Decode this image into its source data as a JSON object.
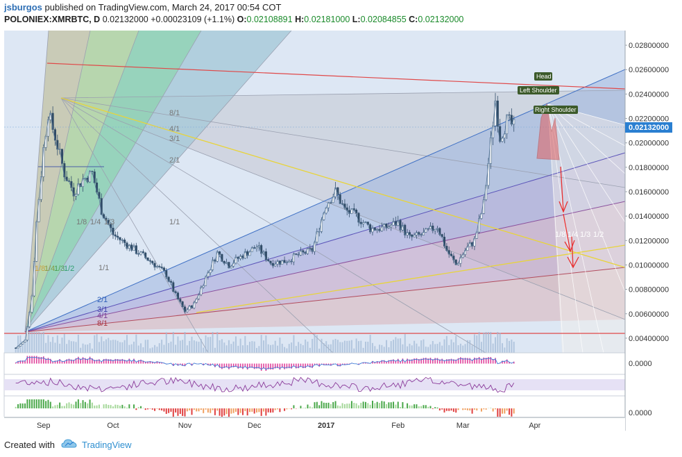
{
  "header": {
    "author": "jsburgos",
    "published": "published on TradingView.com, March 24, 2017 00:54 COT",
    "symbol": "POLONIEX:XMRBTC, D",
    "last": "0.02132000",
    "change": "+0.00023109 (+1.1%)",
    "open_label": "O:",
    "open": "0.02108891",
    "high_label": "H:",
    "high": "0.02181000",
    "low_label": "L:",
    "low": "0.02084855",
    "close_label": "C:",
    "close": "0.02132000"
  },
  "footer": {
    "created_with": "Created with",
    "brand": "TradingView",
    "logo_icon": "tradingview-cloud-icon"
  },
  "colors": {
    "up": "#26a69a",
    "down": "#ef5350",
    "price_badge": "#2a7fd1",
    "resistance": "#e04848",
    "trendline": "#e8d43a",
    "background": "#dfe8f5"
  },
  "annotations": {
    "head": "Head",
    "left_shoulder": "Left Shoulder",
    "right_shoulder": "Right Shoulder",
    "fan_labels": [
      "8/1",
      "4/1",
      "3/1",
      "2/1",
      "1/1",
      "1/8",
      "1/4",
      "1/3",
      "1/1",
      "2/1",
      "3/1",
      "4/1",
      "8/1"
    ],
    "green_fan_labels": [
      "1/8",
      "1/4",
      "1/3",
      "1/2"
    ],
    "projection_labels": [
      "1/8",
      "1/4",
      "1/3",
      "1/2"
    ]
  },
  "chart_data": {
    "type": "candlestick",
    "title": "POLONIEX:XMRBTC, D",
    "x_ticks": [
      "Sep",
      "Oct",
      "Nov",
      "Dec",
      "2017",
      "Feb",
      "Mar",
      "Apr"
    ],
    "y_ticks": [
      "0.00400000",
      "0.00600000",
      "0.00800000",
      "0.01000000",
      "0.01200000",
      "0.01400000",
      "0.01600000",
      "0.01800000",
      "0.02000000",
      "0.02200000",
      "0.02400000",
      "0.02600000",
      "0.02800000"
    ],
    "ylim": [
      0.0028,
      0.0292
    ],
    "last_price": "0.02132000",
    "close_series": [
      {
        "date": "2016-08-20",
        "value": 0.0032
      },
      {
        "date": "2016-08-24",
        "value": 0.0038
      },
      {
        "date": "2016-08-27",
        "value": 0.0075
      },
      {
        "date": "2016-08-29",
        "value": 0.0135
      },
      {
        "date": "2016-09-01",
        "value": 0.0195
      },
      {
        "date": "2016-09-03",
        "value": 0.0225
      },
      {
        "date": "2016-09-06",
        "value": 0.0205
      },
      {
        "date": "2016-09-10",
        "value": 0.0175
      },
      {
        "date": "2016-09-14",
        "value": 0.016
      },
      {
        "date": "2016-09-18",
        "value": 0.017
      },
      {
        "date": "2016-09-22",
        "value": 0.0175
      },
      {
        "date": "2016-09-26",
        "value": 0.0145
      },
      {
        "date": "2016-10-01",
        "value": 0.0125
      },
      {
        "date": "2016-10-06",
        "value": 0.0118
      },
      {
        "date": "2016-10-12",
        "value": 0.011
      },
      {
        "date": "2016-10-18",
        "value": 0.0102
      },
      {
        "date": "2016-10-24",
        "value": 0.0092
      },
      {
        "date": "2016-10-28",
        "value": 0.0075
      },
      {
        "date": "2016-11-01",
        "value": 0.0062
      },
      {
        "date": "2016-11-05",
        "value": 0.0068
      },
      {
        "date": "2016-11-10",
        "value": 0.009
      },
      {
        "date": "2016-11-15",
        "value": 0.011
      },
      {
        "date": "2016-11-20",
        "value": 0.01
      },
      {
        "date": "2016-11-26",
        "value": 0.0108
      },
      {
        "date": "2016-12-02",
        "value": 0.0115
      },
      {
        "date": "2016-12-08",
        "value": 0.0102
      },
      {
        "date": "2016-12-14",
        "value": 0.0103
      },
      {
        "date": "2016-12-20",
        "value": 0.0108
      },
      {
        "date": "2016-12-26",
        "value": 0.0112
      },
      {
        "date": "2017-01-01",
        "value": 0.015
      },
      {
        "date": "2017-01-05",
        "value": 0.016
      },
      {
        "date": "2017-01-09",
        "value": 0.0145
      },
      {
        "date": "2017-01-14",
        "value": 0.014
      },
      {
        "date": "2017-01-20",
        "value": 0.013
      },
      {
        "date": "2017-01-26",
        "value": 0.013
      },
      {
        "date": "2017-02-01",
        "value": 0.0135
      },
      {
        "date": "2017-02-06",
        "value": 0.0122
      },
      {
        "date": "2017-02-12",
        "value": 0.0125
      },
      {
        "date": "2017-02-18",
        "value": 0.0132
      },
      {
        "date": "2017-02-22",
        "value": 0.0112
      },
      {
        "date": "2017-02-26",
        "value": 0.01
      },
      {
        "date": "2017-03-02",
        "value": 0.0112
      },
      {
        "date": "2017-03-06",
        "value": 0.012
      },
      {
        "date": "2017-03-10",
        "value": 0.015
      },
      {
        "date": "2017-03-13",
        "value": 0.02
      },
      {
        "date": "2017-03-15",
        "value": 0.0235
      },
      {
        "date": "2017-03-17",
        "value": 0.0205
      },
      {
        "date": "2017-03-20",
        "value": 0.0218
      },
      {
        "date": "2017-03-23",
        "value": 0.02132
      }
    ],
    "indicator_ticks": [
      "0.0000",
      "0.0000"
    ]
  }
}
